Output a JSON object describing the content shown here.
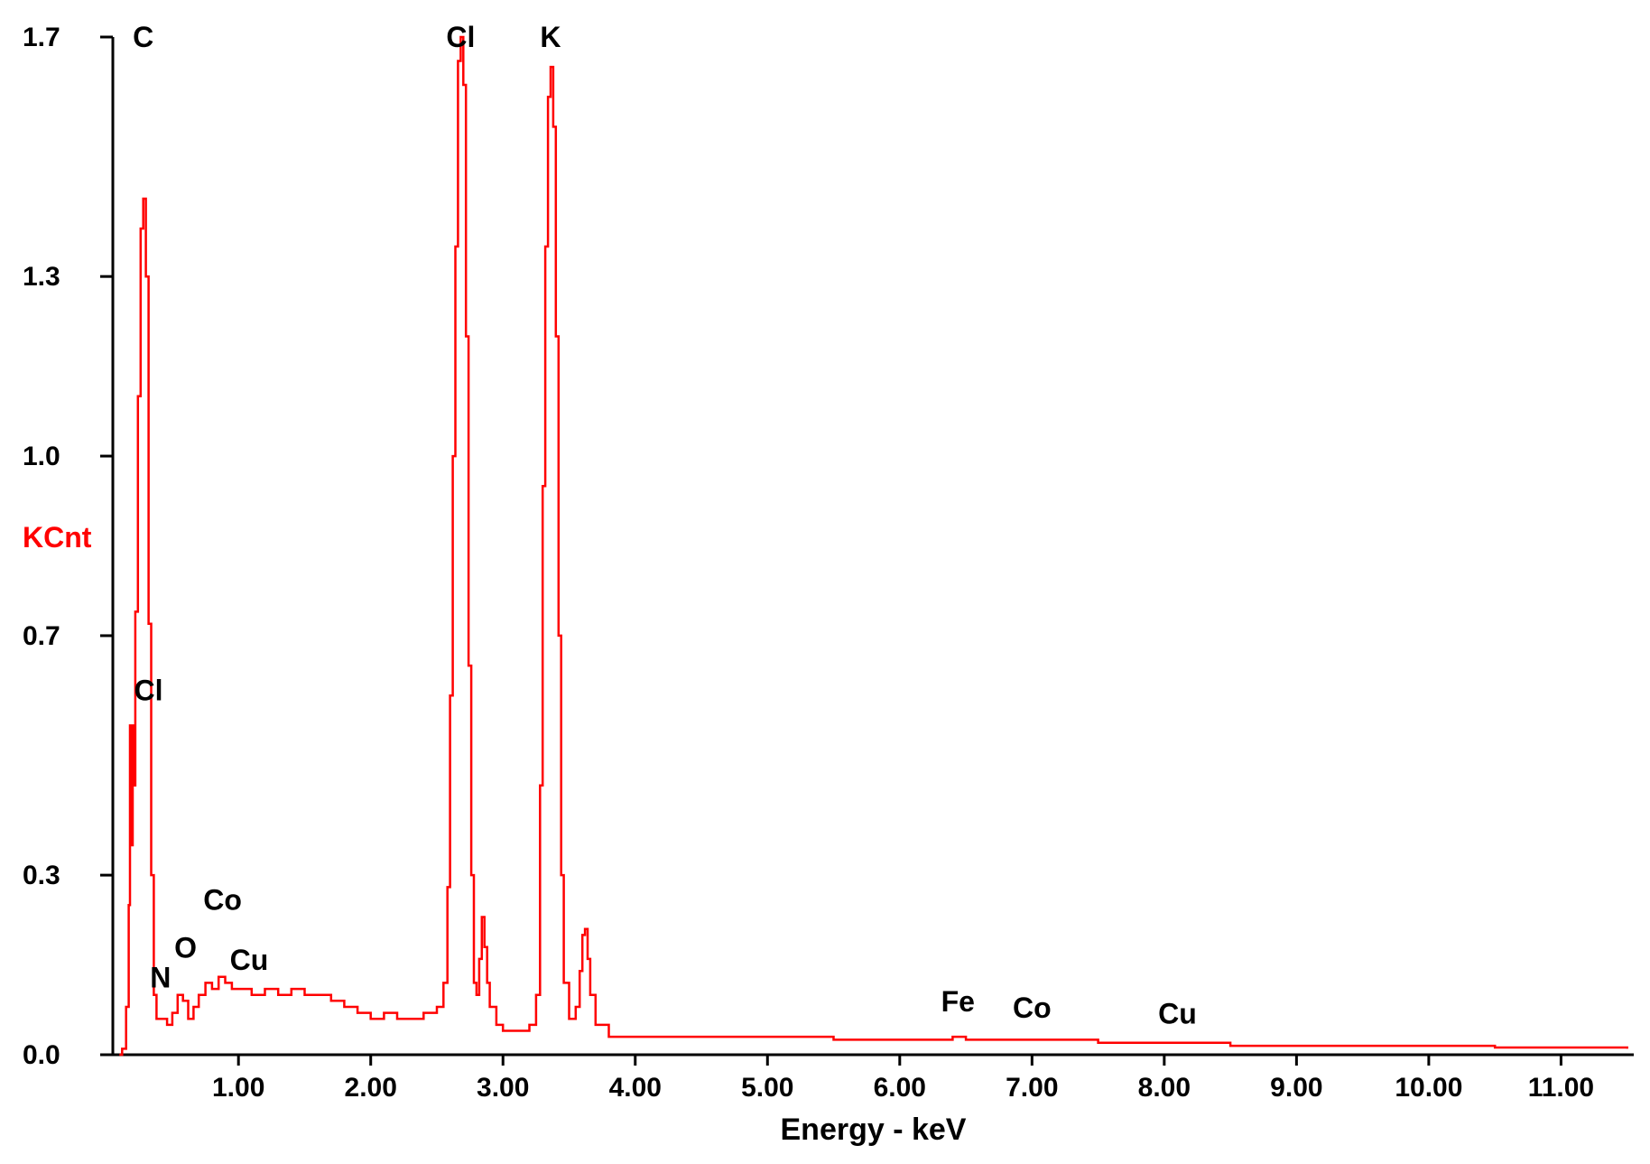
{
  "chart_data": {
    "type": "line",
    "xlabel": "Energy - keV",
    "ylabel": "KCnt",
    "xlim": [
      0.05,
      11.55
    ],
    "ylim": [
      0.0,
      1.7
    ],
    "x_ticks": [
      1.0,
      2.0,
      3.0,
      4.0,
      5.0,
      6.0,
      7.0,
      8.0,
      9.0,
      10.0,
      11.0
    ],
    "x_tick_labels": [
      "1.00",
      "2.00",
      "3.00",
      "4.00",
      "5.00",
      "6.00",
      "7.00",
      "8.00",
      "9.00",
      "10.00",
      "11.00"
    ],
    "y_ticks": [
      0.0,
      0.3,
      0.7,
      1.0,
      1.3,
      1.7
    ],
    "y_tick_labels": [
      "0.0",
      "0.3",
      "0.7",
      "1.0",
      "1.3",
      "1.7"
    ],
    "grid": false,
    "series": [
      {
        "color": "#ff0000",
        "points": [
          [
            0.1,
            0.0
          ],
          [
            0.12,
            0.01
          ],
          [
            0.15,
            0.08
          ],
          [
            0.17,
            0.25
          ],
          [
            0.18,
            0.55
          ],
          [
            0.19,
            0.35
          ],
          [
            0.2,
            0.55
          ],
          [
            0.21,
            0.45
          ],
          [
            0.22,
            0.74
          ],
          [
            0.24,
            1.1
          ],
          [
            0.26,
            1.38
          ],
          [
            0.28,
            1.43
          ],
          [
            0.3,
            1.3
          ],
          [
            0.32,
            0.72
          ],
          [
            0.34,
            0.3
          ],
          [
            0.36,
            0.1
          ],
          [
            0.38,
            0.06
          ],
          [
            0.42,
            0.06
          ],
          [
            0.46,
            0.05
          ],
          [
            0.5,
            0.07
          ],
          [
            0.54,
            0.1
          ],
          [
            0.58,
            0.09
          ],
          [
            0.62,
            0.06
          ],
          [
            0.66,
            0.08
          ],
          [
            0.7,
            0.1
          ],
          [
            0.75,
            0.12
          ],
          [
            0.8,
            0.11
          ],
          [
            0.85,
            0.13
          ],
          [
            0.9,
            0.12
          ],
          [
            0.95,
            0.11
          ],
          [
            1.0,
            0.11
          ],
          [
            1.1,
            0.1
          ],
          [
            1.2,
            0.11
          ],
          [
            1.3,
            0.1
          ],
          [
            1.4,
            0.11
          ],
          [
            1.5,
            0.1
          ],
          [
            1.6,
            0.1
          ],
          [
            1.7,
            0.09
          ],
          [
            1.8,
            0.08
          ],
          [
            1.9,
            0.07
          ],
          [
            2.0,
            0.06
          ],
          [
            2.1,
            0.07
          ],
          [
            2.2,
            0.06
          ],
          [
            2.3,
            0.06
          ],
          [
            2.4,
            0.07
          ],
          [
            2.5,
            0.08
          ],
          [
            2.55,
            0.12
          ],
          [
            2.58,
            0.28
          ],
          [
            2.6,
            0.6
          ],
          [
            2.62,
            1.0
          ],
          [
            2.64,
            1.35
          ],
          [
            2.66,
            1.66
          ],
          [
            2.68,
            1.7
          ],
          [
            2.7,
            1.62
          ],
          [
            2.72,
            1.2
          ],
          [
            2.74,
            0.65
          ],
          [
            2.76,
            0.3
          ],
          [
            2.78,
            0.12
          ],
          [
            2.8,
            0.1
          ],
          [
            2.82,
            0.16
          ],
          [
            2.84,
            0.23
          ],
          [
            2.86,
            0.18
          ],
          [
            2.88,
            0.12
          ],
          [
            2.9,
            0.08
          ],
          [
            2.95,
            0.05
          ],
          [
            3.0,
            0.04
          ],
          [
            3.1,
            0.04
          ],
          [
            3.2,
            0.05
          ],
          [
            3.25,
            0.1
          ],
          [
            3.28,
            0.45
          ],
          [
            3.3,
            0.95
          ],
          [
            3.32,
            1.35
          ],
          [
            3.34,
            1.6
          ],
          [
            3.36,
            1.65
          ],
          [
            3.38,
            1.55
          ],
          [
            3.4,
            1.2
          ],
          [
            3.42,
            0.7
          ],
          [
            3.44,
            0.3
          ],
          [
            3.46,
            0.12
          ],
          [
            3.5,
            0.06
          ],
          [
            3.55,
            0.08
          ],
          [
            3.58,
            0.14
          ],
          [
            3.6,
            0.2
          ],
          [
            3.62,
            0.21
          ],
          [
            3.64,
            0.16
          ],
          [
            3.66,
            0.1
          ],
          [
            3.7,
            0.05
          ],
          [
            3.8,
            0.03
          ],
          [
            4.0,
            0.03
          ],
          [
            4.5,
            0.03
          ],
          [
            5.0,
            0.03
          ],
          [
            5.5,
            0.025
          ],
          [
            6.0,
            0.025
          ],
          [
            6.4,
            0.03
          ],
          [
            6.5,
            0.025
          ],
          [
            7.0,
            0.025
          ],
          [
            7.5,
            0.02
          ],
          [
            8.0,
            0.02
          ],
          [
            8.5,
            0.015
          ],
          [
            9.0,
            0.015
          ],
          [
            9.5,
            0.015
          ],
          [
            10.0,
            0.015
          ],
          [
            10.5,
            0.012
          ],
          [
            11.0,
            0.012
          ],
          [
            11.5,
            0.01
          ]
        ]
      }
    ],
    "peak_labels": [
      {
        "text": "C",
        "x": 0.28,
        "y": 1.7
      },
      {
        "text": "Cl",
        "x": 0.32,
        "y": 0.58
      },
      {
        "text": "N",
        "x": 0.41,
        "y": 0.1
      },
      {
        "text": "O",
        "x": 0.6,
        "y": 0.15
      },
      {
        "text": "Co",
        "x": 0.88,
        "y": 0.23
      },
      {
        "text": "Cu",
        "x": 1.08,
        "y": 0.13
      },
      {
        "text": "Cl",
        "x": 2.68,
        "y": 1.7
      },
      {
        "text": "K",
        "x": 3.36,
        "y": 1.7
      },
      {
        "text": "Fe",
        "x": 6.44,
        "y": 0.06
      },
      {
        "text": "Co",
        "x": 7.0,
        "y": 0.05
      },
      {
        "text": "Cu",
        "x": 8.1,
        "y": 0.04
      }
    ]
  }
}
